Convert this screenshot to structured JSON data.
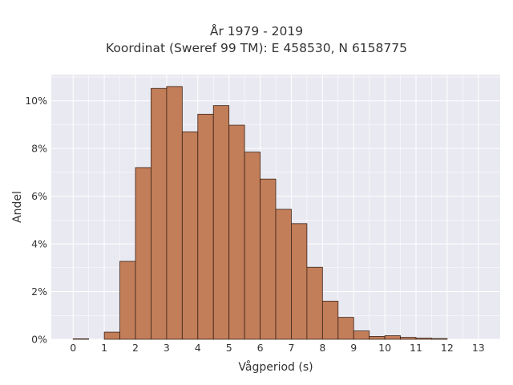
{
  "chart_data": {
    "type": "bar",
    "title": "År 1979 - 2019",
    "subtitle": "Koordinat (Sweref 99 TM): E 458530, N 6158775",
    "xlabel": "Vågperiod (s)",
    "ylabel": "Andel",
    "bin_width": 0.5,
    "bins_start": [
      0,
      0.5,
      1,
      1.5,
      2,
      2.5,
      3,
      3.5,
      4,
      4.5,
      5,
      5.5,
      6,
      6.5,
      7,
      7.5,
      8,
      8.5,
      9,
      9.5,
      10,
      10.5,
      11,
      11.5,
      12,
      12.5
    ],
    "values": [
      0.02,
      0.0,
      0.3,
      3.27,
      7.2,
      10.52,
      10.6,
      8.7,
      9.44,
      9.8,
      8.98,
      7.85,
      6.72,
      5.45,
      4.85,
      3.02,
      1.6,
      0.92,
      0.35,
      0.12,
      0.15,
      0.08,
      0.05,
      0.03,
      0.0,
      0.0
    ],
    "xticks": [
      "0",
      "1",
      "2",
      "3",
      "4",
      "5",
      "6",
      "7",
      "8",
      "9",
      "10",
      "11",
      "12",
      "13"
    ],
    "yticks": [
      "0%",
      "2%",
      "4%",
      "6%",
      "8%",
      "10%"
    ],
    "xlim": [
      -0.7,
      13.7
    ],
    "ylim": [
      0,
      11.1
    ],
    "grid": true,
    "colors": {
      "bar": "#c07852",
      "bar_edge": "#3b2418",
      "plot_bg": "#e9e9f1",
      "grid": "#ffffff"
    }
  }
}
